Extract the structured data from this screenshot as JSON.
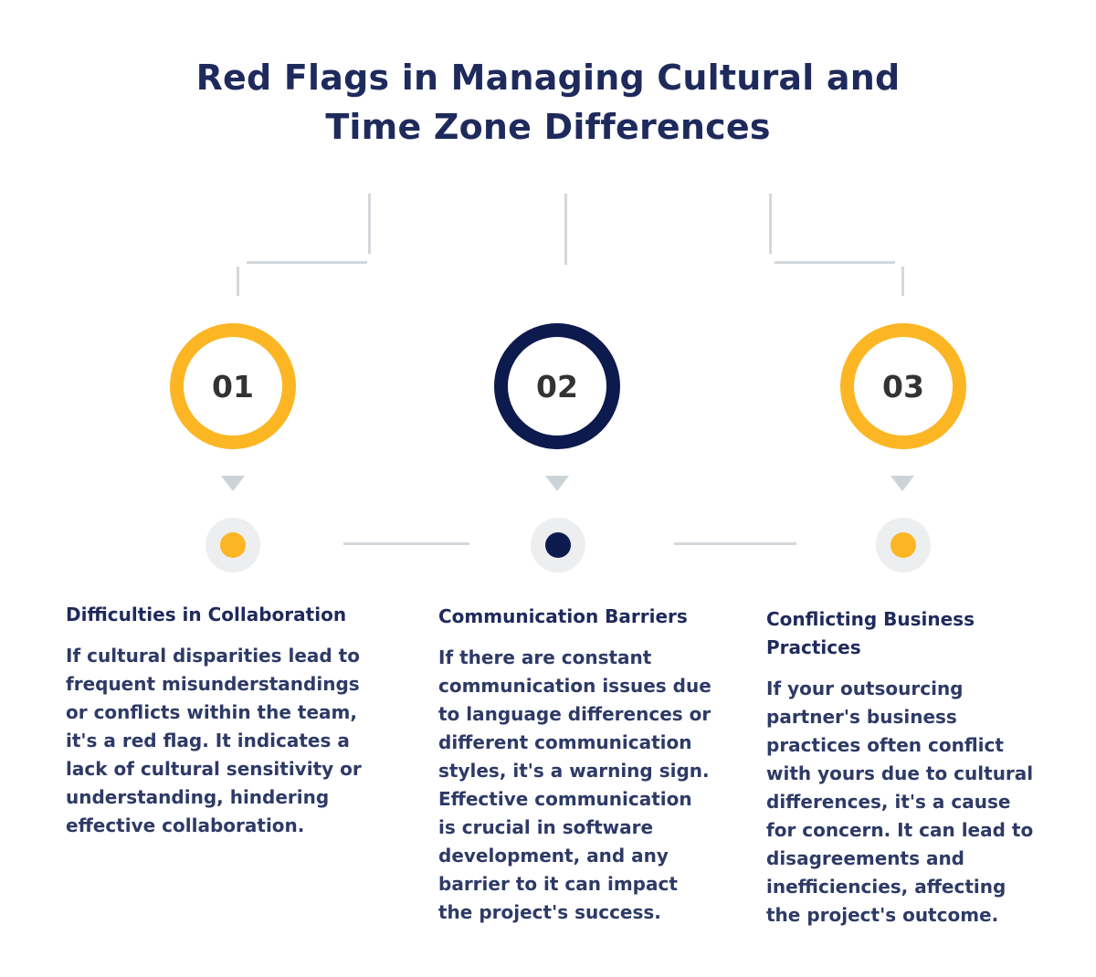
{
  "header": {
    "title_line1": "Red Flags in Managing Cultural and",
    "title_line2": "Time Zone Differences"
  },
  "colors": {
    "accent_yellow": "#fcb624",
    "accent_navy": "#0d1a4d",
    "text_navy": "#1f2a5c",
    "connector_gray": "#d3d8dc"
  },
  "steps": [
    {
      "number": "01",
      "heading": "Difficulties in Collaboration",
      "body": "If cultural disparities lead to frequent misunderstandings or conflicts within the team, it's a red flag. It indicates a lack of cultural sensitivity or understanding, hindering effective collaboration."
    },
    {
      "number": "02",
      "heading": "Communication Barriers",
      "body": "If there are constant communication issues due to language differences or different communication styles, it's a warning sign. Effective communication is crucial in software development, and any barrier to it can impact the project's success."
    },
    {
      "number": "03",
      "heading": "Conflicting Business Practices",
      "body": "If your outsourcing partner's business practices often conflict with yours due to cultural differences, it's a cause for concern. It can lead to disagreements and inefficiencies, affecting the project's outcome."
    }
  ]
}
